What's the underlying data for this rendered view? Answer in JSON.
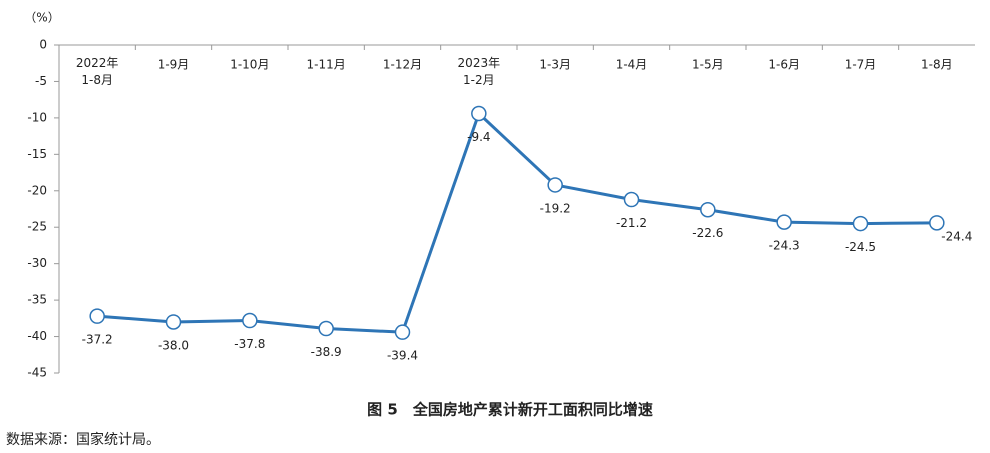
{
  "chart_data": {
    "type": "line",
    "title": "图 5　全国房地产累计新开工面积同比增速",
    "y_label": "（%）",
    "source": "数据来源：国家统计局。",
    "categories": [
      "2022年\n1-8月",
      "1-9月",
      "1-10月",
      "1-11月",
      "1-12月",
      "2023年\n1-2月",
      "1-3月",
      "1-4月",
      "1-5月",
      "1-6月",
      "1-7月",
      "1-8月"
    ],
    "series": [
      {
        "name": "全国房地产累计新开工面积同比增速",
        "color": "#2e75b6",
        "values": [
          -37.2,
          -38.0,
          -37.8,
          -38.9,
          -39.4,
          -9.4,
          -19.2,
          -21.2,
          -22.6,
          -24.3,
          -24.5,
          -24.4
        ],
        "value_labels": [
          "-37.2",
          "-38.0",
          "-37.8",
          "-38.9",
          "-39.4",
          "-9.4",
          "-19.2",
          "-21.2",
          "-22.6",
          "-24.3",
          "-24.5",
          "-24.4"
        ]
      }
    ],
    "ylim": [
      -45,
      0
    ],
    "yticks": [
      0,
      -5,
      -10,
      -15,
      -20,
      -25,
      -30,
      -35,
      -40,
      -45
    ]
  }
}
